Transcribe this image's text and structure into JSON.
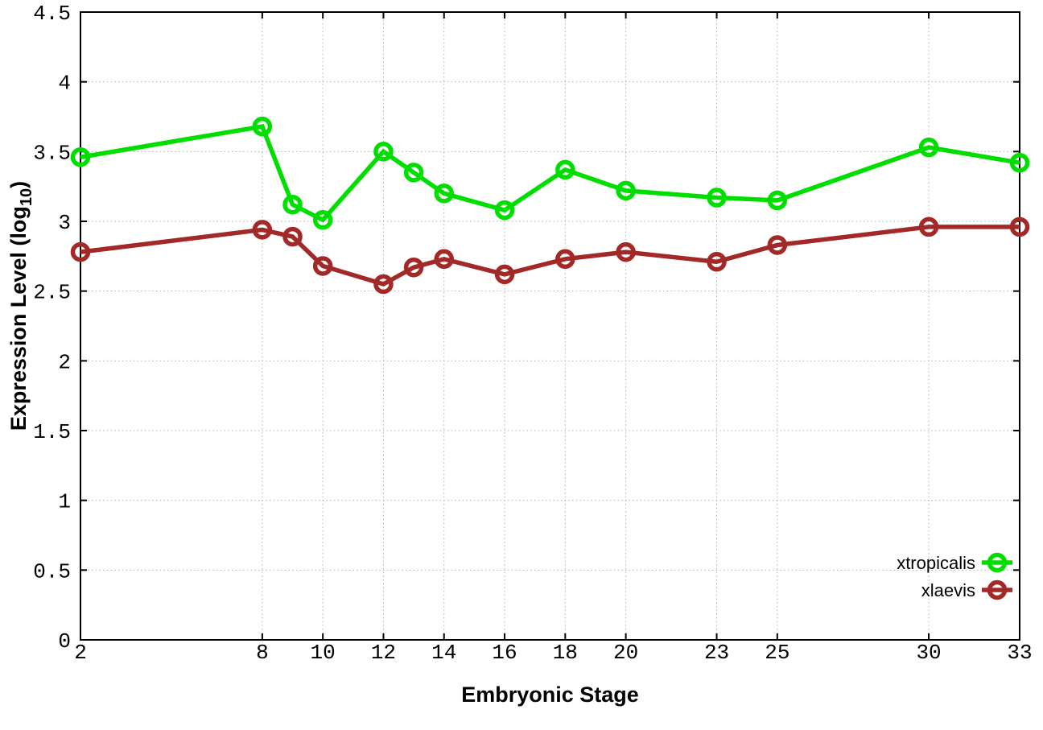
{
  "chart_data": {
    "type": "line",
    "title": "",
    "xlabel": "Embryonic Stage",
    "ylabel": "Expression Level (log10)",
    "ylabel_parts": {
      "pre": "Expression Level (log",
      "sub": "10",
      "post": ")"
    },
    "x": [
      2,
      8,
      9,
      10,
      12,
      13,
      14,
      16,
      18,
      20,
      23,
      25,
      30,
      33
    ],
    "series": [
      {
        "name": "xtropicalis",
        "color": "#00DE00",
        "values": [
          3.46,
          3.68,
          3.12,
          3.01,
          3.5,
          3.35,
          3.2,
          3.08,
          3.37,
          3.22,
          3.17,
          3.15,
          3.53,
          3.42
        ]
      },
      {
        "name": "xlaevis",
        "color": "#A32828",
        "values": [
          2.78,
          2.94,
          2.89,
          2.68,
          2.55,
          2.67,
          2.73,
          2.62,
          2.73,
          2.78,
          2.71,
          2.83,
          2.96,
          2.96
        ]
      }
    ],
    "xlim": [
      2,
      33
    ],
    "ylim": [
      0,
      4.5
    ],
    "x_ticks": [
      2,
      8,
      10,
      12,
      14,
      16,
      18,
      20,
      23,
      25,
      30,
      33
    ],
    "x_tick_labels": [
      "2",
      "8",
      "10",
      "12",
      "14",
      "16",
      "18",
      "20",
      "23",
      "25",
      "30",
      "33"
    ],
    "y_ticks": [
      0,
      0.5,
      1,
      1.5,
      2,
      2.5,
      3,
      3.5,
      4,
      4.5
    ],
    "y_tick_labels": [
      "0",
      "0.5",
      "1",
      "1.5",
      "2",
      "2.5",
      "3",
      "3.5",
      "4",
      "4.5"
    ],
    "grid": true,
    "grid_color": "#AFAFAF",
    "axis_color": "#000000",
    "background_color": "#FFFFFF",
    "legend_position": "bottom-right"
  }
}
